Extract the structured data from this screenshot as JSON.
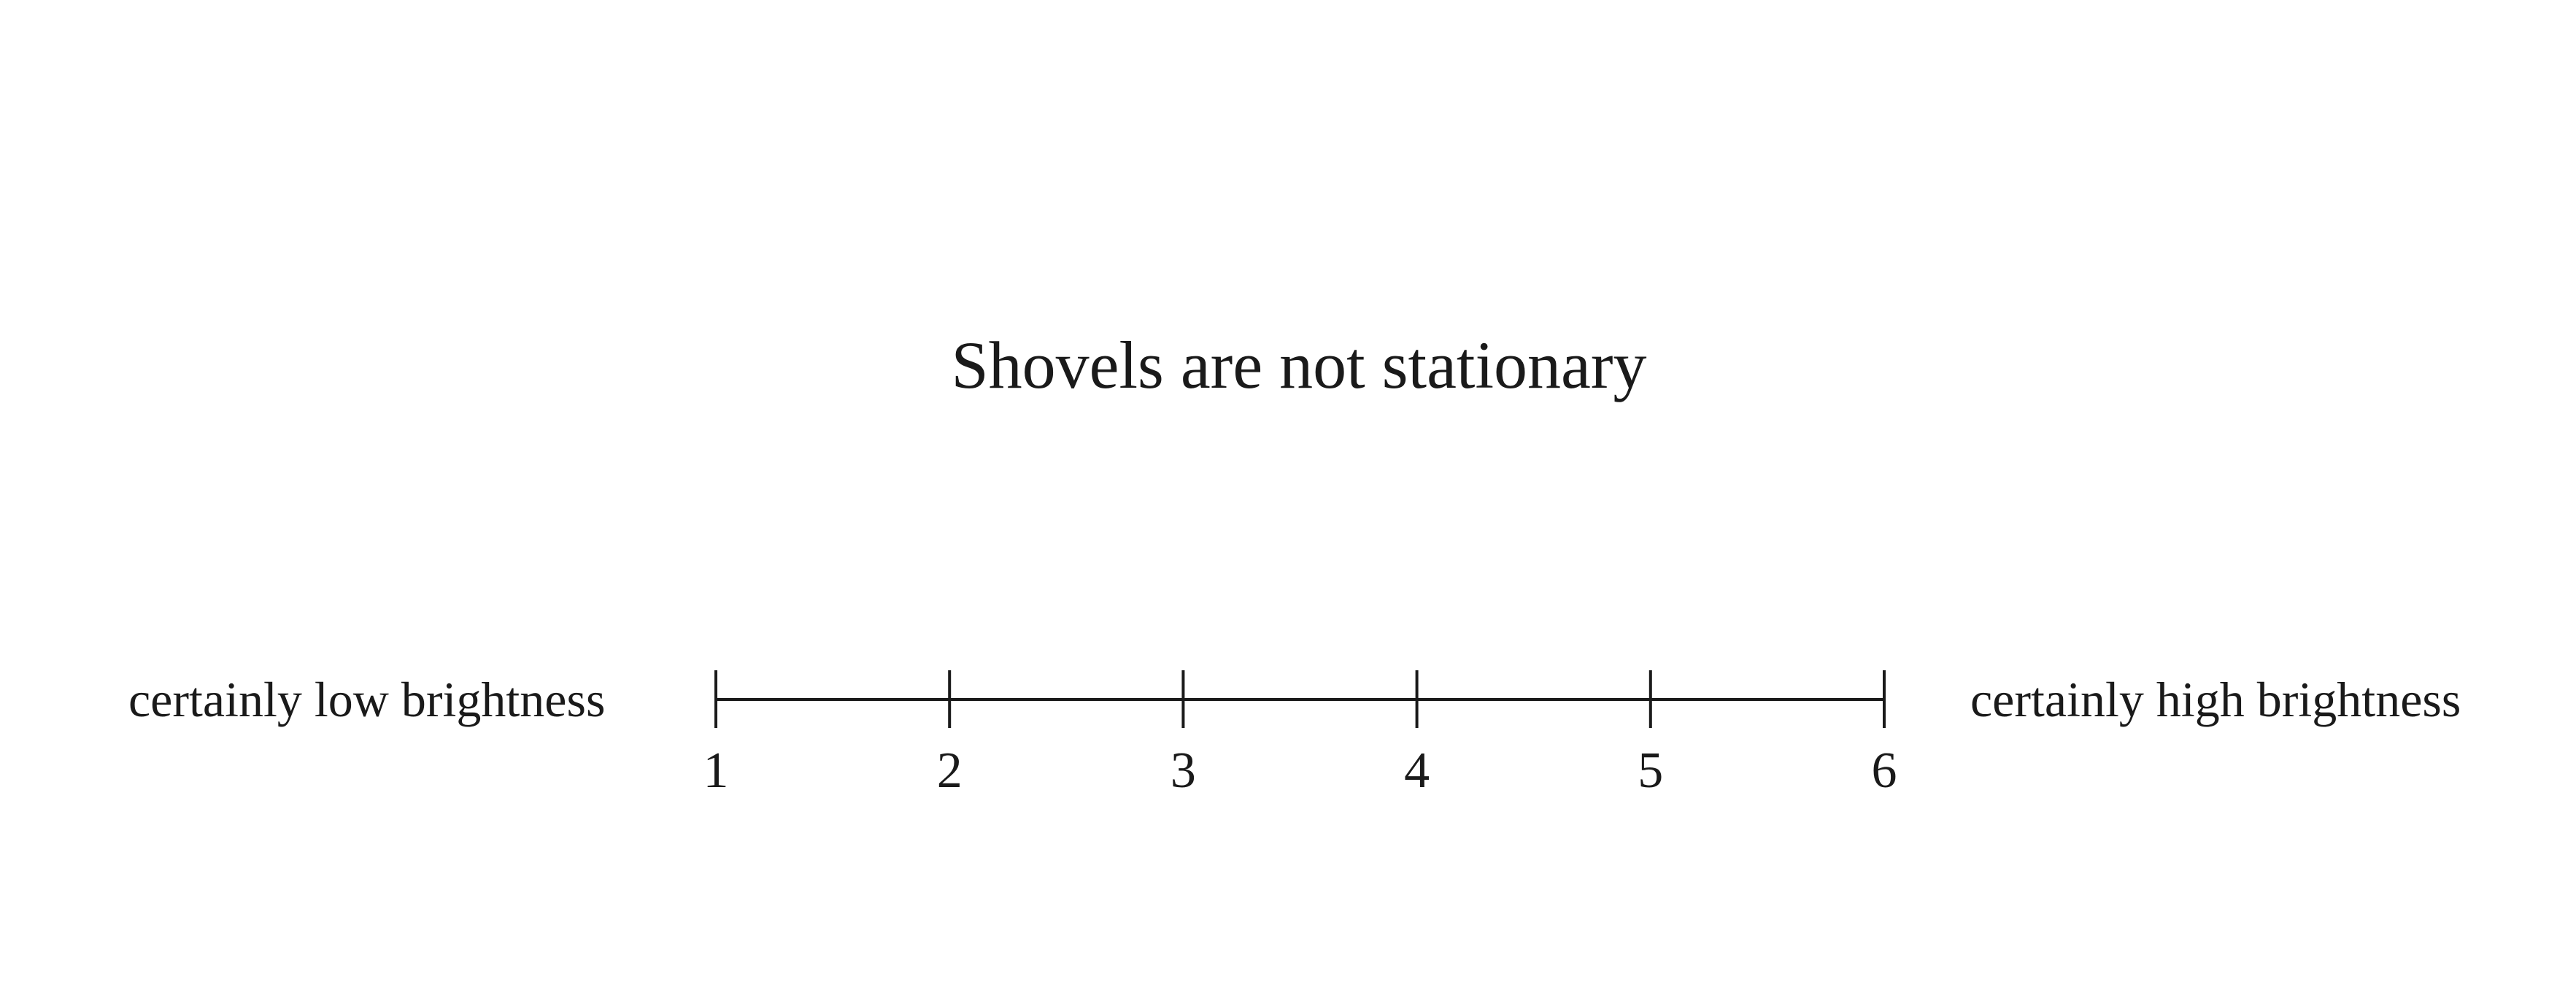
{
  "statement": "Shovels are not stationary",
  "scale": {
    "left_anchor": "certainly low brightness",
    "right_anchor": "certainly high brightness",
    "points": [
      "1",
      "2",
      "3",
      "4",
      "5",
      "6"
    ]
  }
}
